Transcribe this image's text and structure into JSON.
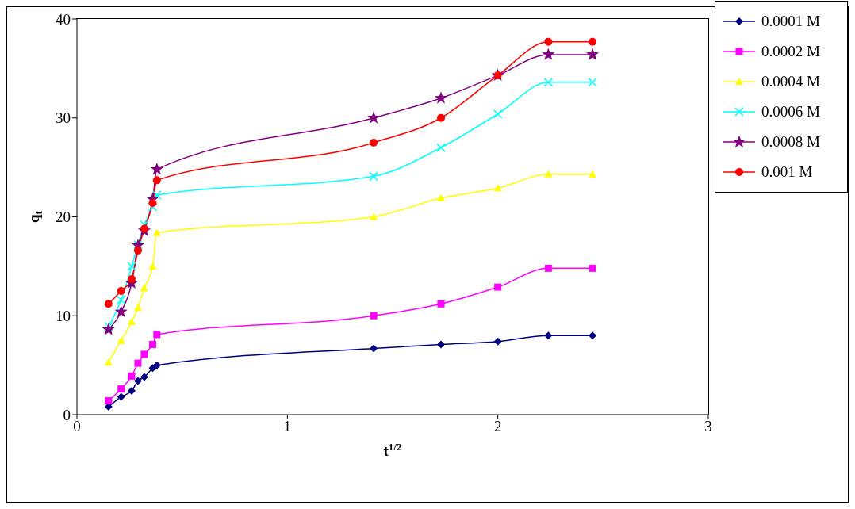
{
  "chart_data": {
    "type": "line",
    "xlabel": "t$^{1/2}$",
    "ylabel": "q$_{t}$",
    "x": [
      0.15,
      0.21,
      0.26,
      0.29,
      0.32,
      0.36,
      0.38,
      1.41,
      1.73,
      2,
      2.24,
      2.45
    ],
    "xlim": [
      0,
      3
    ],
    "xticks": [
      0,
      1,
      2,
      3
    ],
    "ylim": [
      0,
      40
    ],
    "yticks": [
      0,
      10,
      20,
      30,
      40
    ],
    "grid": false,
    "legend": "right",
    "series": [
      {
        "name": "0.0001 M",
        "color": "#000080",
        "marker": "diamond",
        "values": [
          0.8,
          1.8,
          2.4,
          3.4,
          3.8,
          4.7,
          5.0,
          6.7,
          7.1,
          7.4,
          8.0,
          8.0
        ]
      },
      {
        "name": "0.0002 M",
        "color": "#ff00ff",
        "marker": "square",
        "values": [
          1.4,
          2.6,
          3.9,
          5.2,
          6.1,
          7.1,
          8.1,
          10.0,
          11.2,
          12.9,
          14.8,
          14.8
        ]
      },
      {
        "name": "0.0004 M",
        "color": "#ffff00",
        "marker": "triangle",
        "values": [
          5.3,
          7.5,
          9.4,
          10.8,
          12.8,
          15.0,
          18.4,
          20.0,
          21.9,
          22.9,
          24.3,
          24.3
        ]
      },
      {
        "name": "0.0006 M",
        "color": "#00ffff",
        "marker": "cross",
        "values": [
          8.9,
          11.6,
          15.0,
          17.2,
          19.2,
          21.0,
          22.2,
          24.1,
          27.0,
          30.4,
          33.6,
          33.6
        ]
      },
      {
        "name": "0.0008 M",
        "color": "#800080",
        "marker": "star",
        "values": [
          8.6,
          10.4,
          13.3,
          17.1,
          18.6,
          21.8,
          24.8,
          30.0,
          32.0,
          34.3,
          36.4,
          36.4
        ]
      },
      {
        "name": "0.001 M",
        "color": "#ff0000",
        "marker": "circle",
        "values": [
          11.2,
          12.5,
          13.7,
          16.6,
          18.8,
          21.4,
          23.7,
          27.5,
          30.0,
          34.3,
          37.7,
          37.7
        ]
      }
    ]
  }
}
